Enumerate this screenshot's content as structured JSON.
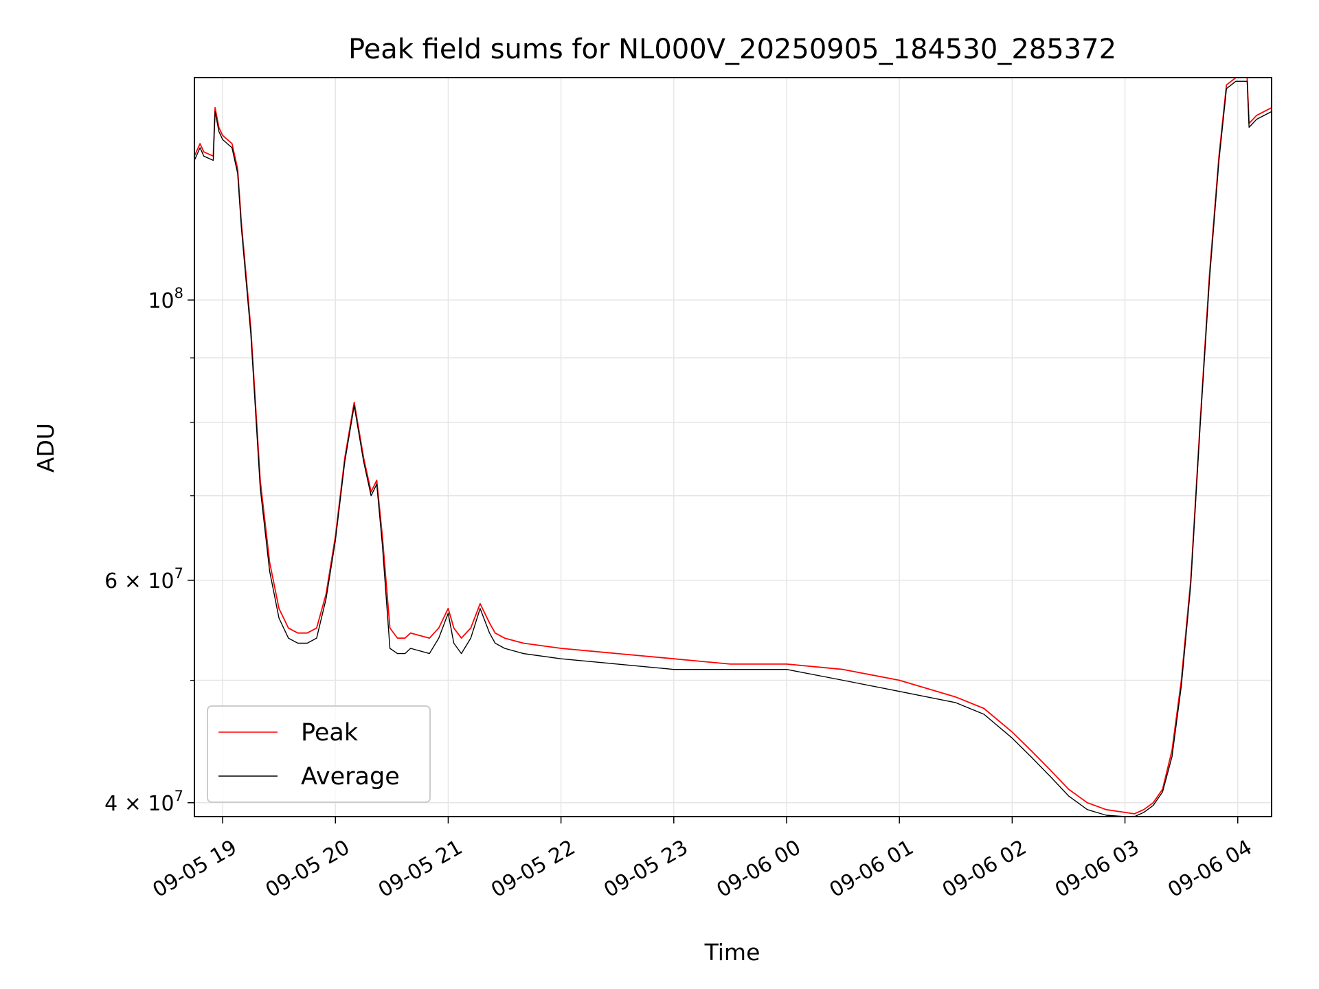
{
  "chart_data": {
    "type": "line",
    "title": "Peak field sums for NL000V_20250905_184530_285372",
    "xlabel": "Time",
    "ylabel": "ADU",
    "yscale": "log",
    "xlim": [
      "2025-09-05 18:45",
      "2025-09-06 04:18"
    ],
    "ylim": [
      39000000,
      150000000
    ],
    "grid": true,
    "legend": {
      "position": "lower-left",
      "entries": [
        "Peak",
        "Average"
      ]
    },
    "x_ticks": [
      {
        "t": "2025-09-05 19:00",
        "label": "09-05 19"
      },
      {
        "t": "2025-09-05 20:00",
        "label": "09-05 20"
      },
      {
        "t": "2025-09-05 21:00",
        "label": "09-05 21"
      },
      {
        "t": "2025-09-05 22:00",
        "label": "09-05 22"
      },
      {
        "t": "2025-09-05 23:00",
        "label": "09-05 23"
      },
      {
        "t": "2025-09-06 00:00",
        "label": "09-06 00"
      },
      {
        "t": "2025-09-06 01:00",
        "label": "09-06 01"
      },
      {
        "t": "2025-09-06 02:00",
        "label": "09-06 02"
      },
      {
        "t": "2025-09-06 03:00",
        "label": "09-06 03"
      },
      {
        "t": "2025-09-06 04:00",
        "label": "09-06 04"
      }
    ],
    "y_ticks": [
      {
        "value": 40000000,
        "mantissa": "4",
        "exp": "7"
      },
      {
        "value": 60000000,
        "mantissa": "6",
        "exp": "7"
      },
      {
        "value": 100000000,
        "mantissa": "",
        "exp": "8"
      }
    ],
    "y_minor_ticks": [
      50000000,
      70000000,
      80000000,
      90000000
    ],
    "colors": {
      "peak": "#ff0000",
      "average": "#000000",
      "grid": "#e6e6e6"
    },
    "series": [
      {
        "name": "Peak",
        "color": "#ff0000",
        "x": [
          "2025-09-05 18:45",
          "2025-09-05 18:48",
          "2025-09-05 18:50",
          "2025-09-05 18:55",
          "2025-09-05 18:56",
          "2025-09-05 18:58",
          "2025-09-05 19:00",
          "2025-09-05 19:05",
          "2025-09-05 19:08",
          "2025-09-05 19:10",
          "2025-09-05 19:15",
          "2025-09-05 19:20",
          "2025-09-05 19:25",
          "2025-09-05 19:30",
          "2025-09-05 19:35",
          "2025-09-05 19:40",
          "2025-09-05 19:45",
          "2025-09-05 19:50",
          "2025-09-05 19:55",
          "2025-09-05 20:00",
          "2025-09-05 20:05",
          "2025-09-05 20:10",
          "2025-09-05 20:15",
          "2025-09-05 20:19",
          "2025-09-05 20:22",
          "2025-09-05 20:25",
          "2025-09-05 20:29",
          "2025-09-05 20:33",
          "2025-09-05 20:37",
          "2025-09-05 20:40",
          "2025-09-05 20:50",
          "2025-09-05 20:55",
          "2025-09-05 21:00",
          "2025-09-05 21:03",
          "2025-09-05 21:07",
          "2025-09-05 21:12",
          "2025-09-05 21:17",
          "2025-09-05 21:22",
          "2025-09-05 21:25",
          "2025-09-05 21:30",
          "2025-09-05 21:40",
          "2025-09-05 22:00",
          "2025-09-05 22:30",
          "2025-09-05 23:00",
          "2025-09-05 23:30",
          "2025-09-06 00:00",
          "2025-09-06 00:30",
          "2025-09-06 01:00",
          "2025-09-06 01:30",
          "2025-09-06 01:45",
          "2025-09-06 02:00",
          "2025-09-06 02:10",
          "2025-09-06 02:20",
          "2025-09-06 02:30",
          "2025-09-06 02:40",
          "2025-09-06 02:50",
          "2025-09-06 03:00",
          "2025-09-06 03:05",
          "2025-09-06 03:10",
          "2025-09-06 03:15",
          "2025-09-06 03:20",
          "2025-09-06 03:25",
          "2025-09-06 03:30",
          "2025-09-06 03:35",
          "2025-09-06 03:40",
          "2025-09-06 03:45",
          "2025-09-06 03:50",
          "2025-09-06 03:54",
          "2025-09-06 03:59",
          "2025-09-06 04:05",
          "2025-09-06 04:06",
          "2025-09-06 04:10",
          "2025-09-06 04:18"
        ],
        "values": [
          130000000,
          133000000,
          131000000,
          130000000,
          142000000,
          137000000,
          135000000,
          133000000,
          127000000,
          115000000,
          95000000,
          72000000,
          62000000,
          57000000,
          55000000,
          54500000,
          54500000,
          55000000,
          58500000,
          65000000,
          75000000,
          83000000,
          75000000,
          70500000,
          72000000,
          65000000,
          55000000,
          54000000,
          54000000,
          54500000,
          54000000,
          55000000,
          57000000,
          55000000,
          54000000,
          55000000,
          57500000,
          55500000,
          54500000,
          54000000,
          53500000,
          53000000,
          52500000,
          52000000,
          51500000,
          51500000,
          51000000,
          50000000,
          48500000,
          47500000,
          45500000,
          44000000,
          42500000,
          41000000,
          40000000,
          39500000,
          39300000,
          39200000,
          39500000,
          40000000,
          41000000,
          44000000,
          50000000,
          60000000,
          80000000,
          105000000,
          130000000,
          148000000,
          150000000,
          150000000,
          138000000,
          140000000,
          142000000
        ]
      },
      {
        "name": "Average",
        "color": "#000000",
        "x": [
          "2025-09-05 18:45",
          "2025-09-05 18:48",
          "2025-09-05 18:50",
          "2025-09-05 18:55",
          "2025-09-05 18:56",
          "2025-09-05 18:58",
          "2025-09-05 19:00",
          "2025-09-05 19:05",
          "2025-09-05 19:08",
          "2025-09-05 19:10",
          "2025-09-05 19:15",
          "2025-09-05 19:20",
          "2025-09-05 19:25",
          "2025-09-05 19:30",
          "2025-09-05 19:35",
          "2025-09-05 19:40",
          "2025-09-05 19:45",
          "2025-09-05 19:50",
          "2025-09-05 19:55",
          "2025-09-05 20:00",
          "2025-09-05 20:05",
          "2025-09-05 20:10",
          "2025-09-05 20:15",
          "2025-09-05 20:19",
          "2025-09-05 20:22",
          "2025-09-05 20:25",
          "2025-09-05 20:29",
          "2025-09-05 20:33",
          "2025-09-05 20:37",
          "2025-09-05 20:40",
          "2025-09-05 20:50",
          "2025-09-05 20:55",
          "2025-09-05 21:00",
          "2025-09-05 21:03",
          "2025-09-05 21:07",
          "2025-09-05 21:12",
          "2025-09-05 21:17",
          "2025-09-05 21:22",
          "2025-09-05 21:25",
          "2025-09-05 21:30",
          "2025-09-05 21:40",
          "2025-09-05 22:00",
          "2025-09-05 22:30",
          "2025-09-05 23:00",
          "2025-09-05 23:30",
          "2025-09-06 00:00",
          "2025-09-06 00:30",
          "2025-09-06 01:00",
          "2025-09-06 01:30",
          "2025-09-06 01:45",
          "2025-09-06 02:00",
          "2025-09-06 02:10",
          "2025-09-06 02:20",
          "2025-09-06 02:30",
          "2025-09-06 02:40",
          "2025-09-06 02:50",
          "2025-09-06 03:00",
          "2025-09-06 03:05",
          "2025-09-06 03:10",
          "2025-09-06 03:15",
          "2025-09-06 03:20",
          "2025-09-06 03:25",
          "2025-09-06 03:30",
          "2025-09-06 03:35",
          "2025-09-06 03:40",
          "2025-09-06 03:45",
          "2025-09-06 03:50",
          "2025-09-06 03:54",
          "2025-09-06 03:59",
          "2025-09-06 04:05",
          "2025-09-06 04:06",
          "2025-09-06 04:10",
          "2025-09-06 04:18"
        ],
        "values": [
          129000000,
          132000000,
          130000000,
          129000000,
          141000000,
          136000000,
          134000000,
          132000000,
          126000000,
          114000000,
          94000000,
          71000000,
          61000000,
          56000000,
          54000000,
          53500000,
          53500000,
          54000000,
          58000000,
          64500000,
          74500000,
          82500000,
          74500000,
          70000000,
          71500000,
          64000000,
          53000000,
          52500000,
          52500000,
          53000000,
          52500000,
          54000000,
          56500000,
          53500000,
          52500000,
          54000000,
          57000000,
          54500000,
          53500000,
          53000000,
          52500000,
          52000000,
          51500000,
          51000000,
          51000000,
          51000000,
          50000000,
          49000000,
          48000000,
          47000000,
          45000000,
          43500000,
          42000000,
          40500000,
          39500000,
          39100000,
          39000000,
          39000000,
          39300000,
          39800000,
          40800000,
          43500000,
          49500000,
          59500000,
          79500000,
          104000000,
          129000000,
          147000000,
          149000000,
          149000000,
          137000000,
          139000000,
          141000000
        ]
      }
    ]
  }
}
